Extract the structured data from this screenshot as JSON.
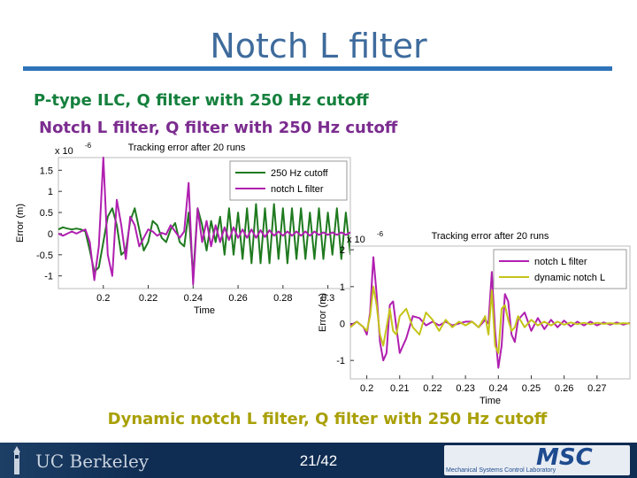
{
  "slide": {
    "title": "Notch L filter",
    "line1": "P-type ILC, Q filter with 250 Hz cutoff",
    "line2": "Notch L filter, Q filter with 250 Hz cutoff",
    "line3": "Dynamic notch L filter, Q filter with 250 Hz cutoff"
  },
  "footer": {
    "brand": "UC Berkeley",
    "page": "21/42",
    "logo": "MSC",
    "lab": "Mechanical Systems Control Laboratory"
  },
  "colors": {
    "title": "#3e6b9c",
    "rule": "#2e73b8",
    "green": "#1f7a1f",
    "purple": "#b01fb0",
    "yellow": "#c4c41a",
    "footer": "#0f2c52"
  },
  "chart_data": [
    {
      "type": "line",
      "title": "Tracking error after 20 runs",
      "multiplier": "x 10",
      "multiplier_exp": "-6",
      "xlabel": "Time",
      "ylabel": "Error (m)",
      "xlim": [
        0.18,
        0.31
      ],
      "ylim": [
        -1.3,
        1.8
      ],
      "xticks": [
        0.2,
        0.22,
        0.24,
        0.26,
        0.28,
        0.3
      ],
      "xtick_labels": [
        "0.2",
        "0.22",
        "0.24",
        "0.26",
        "0.28",
        "0.3"
      ],
      "yticks": [
        -1,
        -0.5,
        0,
        0.5,
        1,
        1.5
      ],
      "ytick_labels": [
        "-1",
        "-0.5",
        "0",
        "0.5",
        "1",
        "1.5"
      ],
      "legend_position": "top-right",
      "series": [
        {
          "name": "250 Hz cutoff",
          "color": "#1f7a1f",
          "x": [
            0.18,
            0.182,
            0.184,
            0.186,
            0.188,
            0.19,
            0.192,
            0.194,
            0.196,
            0.198,
            0.2,
            0.202,
            0.204,
            0.206,
            0.208,
            0.21,
            0.212,
            0.214,
            0.216,
            0.218,
            0.22,
            0.222,
            0.224,
            0.226,
            0.228,
            0.23,
            0.232,
            0.234,
            0.236,
            0.238,
            0.24,
            0.242,
            0.244,
            0.246,
            0.248,
            0.25,
            0.252,
            0.254,
            0.256,
            0.258,
            0.26,
            0.262,
            0.264,
            0.266,
            0.268,
            0.27,
            0.272,
            0.274,
            0.276,
            0.278,
            0.28,
            0.282,
            0.284,
            0.286,
            0.288,
            0.29,
            0.292,
            0.294,
            0.296,
            0.298,
            0.3,
            0.302,
            0.304,
            0.306,
            0.308,
            0.31
          ],
          "y": [
            0.1,
            0.15,
            0.12,
            0.1,
            0.12,
            0.1,
            0.05,
            -0.4,
            -0.9,
            -0.8,
            -0.2,
            0.4,
            0.6,
            0.2,
            -0.5,
            -0.4,
            0.3,
            0.6,
            0.1,
            -0.4,
            -0.2,
            0.3,
            0.2,
            -0.1,
            -0.2,
            0.1,
            0.25,
            -0.2,
            -0.3,
            0.5,
            -1.0,
            0.6,
            0.2,
            -0.4,
            0.3,
            -0.2,
            0.4,
            -0.5,
            0.6,
            -0.5,
            0.5,
            -0.6,
            0.6,
            -0.7,
            0.7,
            -0.7,
            0.6,
            -0.7,
            0.7,
            -0.6,
            0.6,
            -0.7,
            0.6,
            -0.6,
            0.6,
            -0.6,
            0.5,
            -0.6,
            0.6,
            -0.6,
            0.5,
            -0.5,
            0.6,
            -0.6,
            0.5,
            -0.5
          ]
        },
        {
          "name": "notch L filter",
          "color": "#b01fb0",
          "x": [
            0.18,
            0.182,
            0.184,
            0.186,
            0.188,
            0.19,
            0.192,
            0.194,
            0.196,
            0.198,
            0.2,
            0.202,
            0.204,
            0.206,
            0.208,
            0.21,
            0.212,
            0.214,
            0.216,
            0.218,
            0.22,
            0.222,
            0.224,
            0.226,
            0.228,
            0.23,
            0.232,
            0.234,
            0.236,
            0.238,
            0.24,
            0.242,
            0.244,
            0.246,
            0.248,
            0.25,
            0.252,
            0.254,
            0.256,
            0.258,
            0.26,
            0.262,
            0.264,
            0.266,
            0.268,
            0.27,
            0.272,
            0.274,
            0.276,
            0.278,
            0.28,
            0.282,
            0.284,
            0.286,
            0.288,
            0.29,
            0.292,
            0.294,
            0.296,
            0.298,
            0.3,
            0.302,
            0.304,
            0.306,
            0.308,
            0.31
          ],
          "y": [
            0,
            -0.05,
            0,
            0.05,
            0,
            0.05,
            0.1,
            -0.2,
            -1.1,
            -0.3,
            1.8,
            -0.5,
            -1.0,
            0.8,
            0.2,
            -0.6,
            0.4,
            0.2,
            -0.3,
            -0.1,
            0.1,
            0.05,
            -0.05,
            0.02,
            -0.02,
            0.2,
            0.05,
            -0.1,
            0.05,
            1.2,
            -1.2,
            0.6,
            -0.2,
            0.3,
            -0.3,
            0.2,
            -0.2,
            0.15,
            -0.15,
            0.15,
            -0.1,
            0.1,
            -0.1,
            0.1,
            -0.1,
            0.08,
            -0.08,
            0.08,
            -0.05,
            0.05,
            -0.05,
            0.05,
            -0.05,
            0.05,
            -0.05,
            0.05,
            -0.05,
            0.05,
            -0.03,
            0.03,
            -0.03,
            0.03,
            -0.03,
            0.03,
            -0.03,
            0.03
          ]
        }
      ]
    },
    {
      "type": "line",
      "title": "Tracking error after 20 runs",
      "multiplier": "x 10",
      "multiplier_exp": "-6",
      "xlabel": "Time",
      "ylabel": "Error (m)",
      "xlim": [
        0.195,
        0.28
      ],
      "ylim": [
        -1.5,
        2.1
      ],
      "xticks": [
        0.2,
        0.21,
        0.22,
        0.23,
        0.24,
        0.25,
        0.26,
        0.27
      ],
      "xtick_labels": [
        "0.2",
        "0.21",
        "0.22",
        "0.23",
        "0.24",
        "0.25",
        "0.26",
        "0.27"
      ],
      "yticks": [
        -1,
        0,
        1,
        2
      ],
      "ytick_labels": [
        "-1",
        "0",
        "1",
        "2"
      ],
      "legend_position": "top-right",
      "series": [
        {
          "name": "notch L filter",
          "color": "#b01fb0",
          "x": [
            0.195,
            0.197,
            0.199,
            0.2,
            0.201,
            0.202,
            0.203,
            0.204,
            0.205,
            0.206,
            0.207,
            0.208,
            0.209,
            0.21,
            0.212,
            0.214,
            0.216,
            0.218,
            0.22,
            0.222,
            0.224,
            0.226,
            0.228,
            0.23,
            0.232,
            0.234,
            0.236,
            0.237,
            0.238,
            0.239,
            0.24,
            0.241,
            0.242,
            0.243,
            0.244,
            0.245,
            0.246,
            0.248,
            0.25,
            0.252,
            0.254,
            0.256,
            0.258,
            0.26,
            0.262,
            0.264,
            0.266,
            0.268,
            0.27,
            0.272,
            0.274,
            0.276,
            0.278,
            0.28
          ],
          "y": [
            -0.05,
            0.05,
            -0.1,
            -0.3,
            0.3,
            1.8,
            0.8,
            -0.5,
            -1.0,
            -0.8,
            0.5,
            0.6,
            -0.1,
            -0.8,
            -0.4,
            0.2,
            0.15,
            -0.05,
            0.05,
            -0.05,
            0.05,
            -0.05,
            0.0,
            0.05,
            0.05,
            -0.1,
            0.1,
            0.0,
            1.4,
            -0.2,
            -1.2,
            -0.6,
            0.8,
            0.6,
            -0.3,
            -0.5,
            0.1,
            0.3,
            -0.2,
            0.15,
            -0.15,
            0.1,
            -0.1,
            0.08,
            -0.08,
            0.05,
            -0.05,
            0.05,
            -0.05,
            0.03,
            -0.03,
            0.03,
            -0.03,
            0.02
          ]
        },
        {
          "name": "dynamic notch L",
          "color": "#c4c41a",
          "x": [
            0.195,
            0.197,
            0.199,
            0.2,
            0.201,
            0.202,
            0.203,
            0.204,
            0.205,
            0.206,
            0.207,
            0.208,
            0.209,
            0.21,
            0.212,
            0.214,
            0.216,
            0.218,
            0.22,
            0.222,
            0.224,
            0.226,
            0.228,
            0.23,
            0.232,
            0.234,
            0.236,
            0.237,
            0.238,
            0.239,
            0.24,
            0.241,
            0.242,
            0.243,
            0.244,
            0.245,
            0.246,
            0.248,
            0.25,
            0.252,
            0.254,
            0.256,
            0.258,
            0.26,
            0.262,
            0.264,
            0.266,
            0.268,
            0.27,
            0.272,
            0.274,
            0.276,
            0.278,
            0.28
          ],
          "y": [
            -0.1,
            0.05,
            -0.1,
            -0.2,
            0.2,
            1.0,
            0.5,
            -0.3,
            -0.6,
            -0.1,
            0.4,
            -0.2,
            -0.3,
            0.2,
            0.4,
            -0.1,
            -0.3,
            0.3,
            0.1,
            -0.2,
            0.1,
            -0.1,
            0.05,
            -0.05,
            0.05,
            -0.1,
            0.2,
            -0.3,
            0.9,
            -0.6,
            -0.8,
            0.4,
            0.5,
            0.1,
            -0.2,
            -0.1,
            0.2,
            -0.1,
            0.1,
            -0.05,
            0.05,
            -0.05,
            0.05,
            -0.03,
            0.03,
            -0.02,
            0.02,
            -0.02,
            0.02,
            -0.01,
            0.01,
            -0.01,
            0.01,
            0.0
          ]
        }
      ]
    }
  ]
}
